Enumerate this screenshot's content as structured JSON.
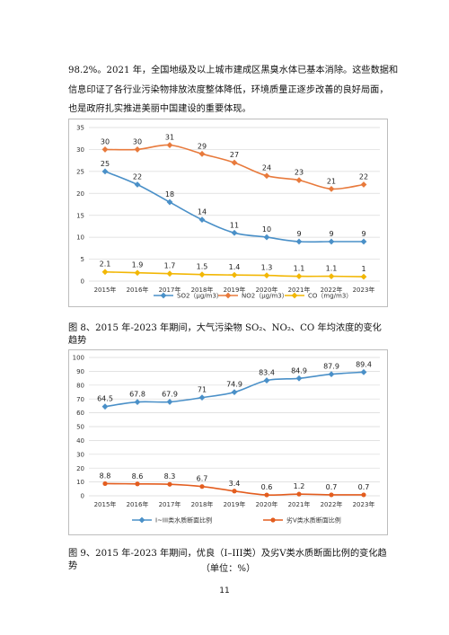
{
  "paragraph": [
    "98.2%。2021 年，全国地级及以上城市建成区黑臭水体已基本消除。这些数据和",
    "信息印证了各行业污染物排放浓度整体降低，环境质量正逐步改善的良好局面，",
    "也是政府扎实推进美丽中国建设的重要体现。"
  ],
  "captions": {
    "fig8": "图 8、2015 年-2023 年期间，大气污染物 SO₂、NO₂、CO 年均浓度的变化趋势",
    "fig9": "图 9、2015 年-2023 年期间，优良（I–III类）及劣V类水质断面比例的变化趋势",
    "fig9_unit": "（单位：%）"
  },
  "page_number": "11",
  "chart_data": [
    {
      "type": "line",
      "categories": [
        "2015年",
        "2016年",
        "2017年",
        "2018年",
        "2019年",
        "2020年",
        "2021年",
        "2022年",
        "2023年"
      ],
      "ylim": [
        0,
        35
      ],
      "yticks": [
        0,
        5,
        10,
        15,
        20,
        25,
        30,
        35
      ],
      "grid": true,
      "legend": "bottom",
      "series": [
        {
          "name": "SO2（μg/m3）",
          "color": "#4a90c8",
          "marker": "diamond",
          "values": [
            25,
            22,
            18,
            14,
            11,
            10,
            9,
            9,
            9
          ]
        },
        {
          "name": "NO2（μg/m3）",
          "color": "#e87a3c",
          "marker": "diamond",
          "values": [
            30,
            30,
            31,
            29,
            27,
            24,
            23,
            21,
            22
          ]
        },
        {
          "name": "CO（mg/m3）",
          "color": "#f2b705",
          "marker": "diamond",
          "values": [
            2.1,
            1.9,
            1.7,
            1.5,
            1.4,
            1.3,
            1.1,
            1.1,
            1
          ]
        }
      ]
    },
    {
      "type": "line",
      "categories": [
        "2015年",
        "2016年",
        "2017年",
        "2018年",
        "2019年",
        "2020年",
        "2021年",
        "2022年",
        "2023年"
      ],
      "ylim": [
        0,
        100
      ],
      "yticks": [
        0,
        10,
        20,
        30,
        40,
        50,
        60,
        70,
        80,
        90,
        100
      ],
      "grid": true,
      "legend": "bottom",
      "series": [
        {
          "name": "I~III类水质断面比例",
          "color": "#4a90c8",
          "marker": "diamond",
          "values": [
            64.5,
            67.8,
            67.9,
            71,
            74.9,
            83.4,
            84.9,
            87.9,
            89.4
          ]
        },
        {
          "name": "劣V类水质断面比例",
          "color": "#e35d1f",
          "marker": "circle",
          "values": [
            8.8,
            8.6,
            8.3,
            6.7,
            3.4,
            0.6,
            1.2,
            0.7,
            0.7
          ]
        }
      ]
    }
  ]
}
